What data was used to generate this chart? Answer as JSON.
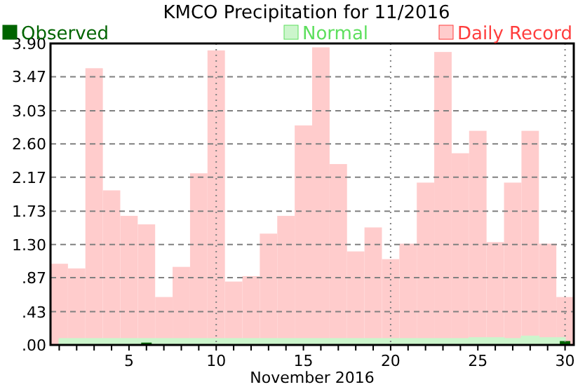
{
  "chart_data": {
    "type": "bar",
    "title": "KMCO Precipitation for 11/2016",
    "xlabel": "November 2016",
    "x": [
      1,
      2,
      3,
      4,
      5,
      6,
      7,
      8,
      9,
      10,
      11,
      12,
      13,
      14,
      15,
      16,
      17,
      18,
      19,
      20,
      21,
      22,
      23,
      24,
      25,
      26,
      27,
      28,
      29,
      30
    ],
    "series": [
      {
        "name": "Daily Record",
        "color": "#ffcccc",
        "values": [
          1.05,
          0.99,
          3.58,
          2.0,
          1.67,
          1.56,
          0.62,
          1.01,
          2.22,
          3.81,
          0.82,
          0.89,
          1.44,
          1.67,
          2.84,
          3.85,
          2.34,
          1.21,
          1.52,
          1.11,
          1.31,
          2.1,
          3.79,
          2.48,
          2.77,
          1.33,
          2.1,
          2.77,
          1.31,
          0.62
        ]
      },
      {
        "name": "Normal",
        "type": "area",
        "color": "#ccf5cc",
        "values": [
          0.08,
          0.08,
          0.08,
          0.08,
          0.08,
          0.08,
          0.08,
          0.08,
          0.08,
          0.08,
          0.08,
          0.08,
          0.08,
          0.08,
          0.08,
          0.08,
          0.08,
          0.08,
          0.08,
          0.08,
          0.08,
          0.08,
          0.08,
          0.08,
          0.09,
          0.09,
          0.08,
          0.11,
          0.09,
          0.09
        ]
      },
      {
        "name": "Observed",
        "color": "#006400",
        "values": [
          0,
          0,
          0,
          0,
          0,
          0.03,
          0,
          0,
          0,
          0,
          0,
          0,
          0,
          0,
          0,
          0,
          0,
          0,
          0,
          0,
          0,
          0,
          0,
          0,
          0,
          0,
          0,
          0,
          0,
          0.05
        ]
      }
    ],
    "xlim": [
      0.5,
      30.5
    ],
    "xticks": [
      {
        "value": 1,
        "label": null
      },
      {
        "value": 2,
        "label": null
      },
      {
        "value": 3,
        "label": null
      },
      {
        "value": 4,
        "label": null
      },
      5,
      {
        "value": 6,
        "label": null
      },
      {
        "value": 7,
        "label": null
      },
      {
        "value": 8,
        "label": null
      },
      {
        "value": 9,
        "label": null
      },
      10,
      {
        "value": 11,
        "label": null
      },
      {
        "value": 12,
        "label": null
      },
      {
        "value": 13,
        "label": null
      },
      {
        "value": 14,
        "label": null
      },
      15,
      {
        "value": 16,
        "label": null
      },
      {
        "value": 17,
        "label": null
      },
      {
        "value": 18,
        "label": null
      },
      {
        "value": 19,
        "label": null
      },
      20,
      {
        "value": 21,
        "label": null
      },
      {
        "value": 22,
        "label": null
      },
      {
        "value": 23,
        "label": null
      },
      {
        "value": 24,
        "label": null
      },
      25,
      {
        "value": 26,
        "label": null
      },
      {
        "value": 27,
        "label": null
      },
      {
        "value": 28,
        "label": null
      },
      {
        "value": 29,
        "label": null
      },
      30
    ],
    "ylim": [
      0,
      3.9
    ],
    "yticks": [
      {
        "value": 0,
        "label": ".00"
      },
      {
        "value": 0.43,
        "label": ".43"
      },
      {
        "value": 0.87,
        "label": ".87"
      },
      {
        "value": 1.3,
        "label": "1.30"
      },
      1.73,
      2.17,
      {
        "value": 2.6,
        "label": "2.60"
      },
      3.03,
      3.47,
      {
        "value": 3.9,
        "label": "3.90"
      }
    ],
    "grid": "y",
    "ref_lines": [
      {
        "axis": "x",
        "value": 10,
        "line_style": "dotted",
        "color": "#808080"
      },
      {
        "axis": "x",
        "value": 20,
        "line_style": "dotted",
        "color": "#808080"
      },
      {
        "axis": "x",
        "value": 30,
        "line_style": "dotted",
        "color": "#808080"
      }
    ],
    "legend": "top"
  }
}
